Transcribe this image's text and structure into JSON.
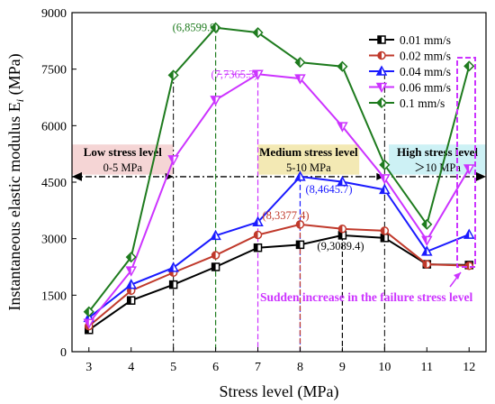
{
  "chart_data": {
    "type": "line",
    "title": "",
    "xlabel": "Stress level (MPa)",
    "ylabel": "Instantaneous elastic modulus E",
    "ylabel_sub": "i",
    "ylabel_unit": " (MPa)",
    "x": [
      3,
      4,
      5,
      6,
      7,
      8,
      9,
      10,
      11,
      12
    ],
    "xlim": [
      2.6,
      12.4
    ],
    "ylim": [
      0,
      9000
    ],
    "yticks": [
      0,
      1500,
      3000,
      4500,
      6000,
      7500,
      9000
    ],
    "grid": false,
    "legend_position": "top-right",
    "series": [
      {
        "name": "0.01 mm/s",
        "color": "#000000",
        "marker": "square",
        "values": [
          580,
          1360,
          1780,
          2250,
          2760,
          2840,
          3089.4,
          3020,
          2320,
          2300
        ]
      },
      {
        "name": "0.02 mm/s",
        "color": "#c0392b",
        "marker": "circle",
        "values": [
          680,
          1620,
          2100,
          2560,
          3100,
          3377.4,
          3260,
          3210,
          2320,
          2280
        ]
      },
      {
        "name": "0.04 mm/s",
        "color": "#1a1aff",
        "marker": "triangle-up",
        "values": [
          900,
          1780,
          2230,
          3080,
          3440,
          4645.7,
          4510,
          4300,
          2660,
          3110
        ]
      },
      {
        "name": "0.06 mm/s",
        "color": "#cc33ff",
        "marker": "triangle-down",
        "values": [
          760,
          2150,
          5100,
          6680,
          7365.3,
          7250,
          5980,
          4600,
          2960,
          4860
        ]
      },
      {
        "name": "0.1 mm/s",
        "color": "#1e7b1e",
        "marker": "diamond",
        "values": [
          1060,
          2510,
          7340,
          8599.9,
          8470,
          7680,
          7570,
          4960,
          3380,
          7580
        ]
      }
    ],
    "peak_labels": [
      {
        "text": "(6,8599.9)",
        "x": 6,
        "y": 8599.9,
        "color": "#1e7b1e"
      },
      {
        "text": "(7,7365.3)",
        "x": 7,
        "y": 7365.3,
        "color": "#cc33ff"
      },
      {
        "text": "(8,4645.7)",
        "x": 8,
        "y": 4645.7,
        "color": "#1a1aff"
      },
      {
        "text": "(8,3377.4)",
        "x": 8,
        "y": 3377.4,
        "color": "#c0392b"
      },
      {
        "text": "(9,3089.4)",
        "x": 9,
        "y": 3089.4,
        "color": "#000000"
      }
    ],
    "reference_line_y": 4645.7,
    "stress_zones": [
      {
        "title": "Low stress level",
        "range": "0-5 MPa",
        "x_from": 2.6,
        "x_to": 5,
        "fill": "#f5d5d5"
      },
      {
        "title": "Medium stress level",
        "range": "5-10 MPa",
        "x_from": 7,
        "x_to": 9.4,
        "fill": "#f3e9b4"
      },
      {
        "title": "High stress level",
        "range": "＞10 MPa",
        "x_from": 10.1,
        "x_to": 12.4,
        "fill": "#cdf1f5"
      }
    ],
    "annotation": {
      "text": "Sudden increase in the failure stress level",
      "color": "#cc33ff"
    }
  }
}
